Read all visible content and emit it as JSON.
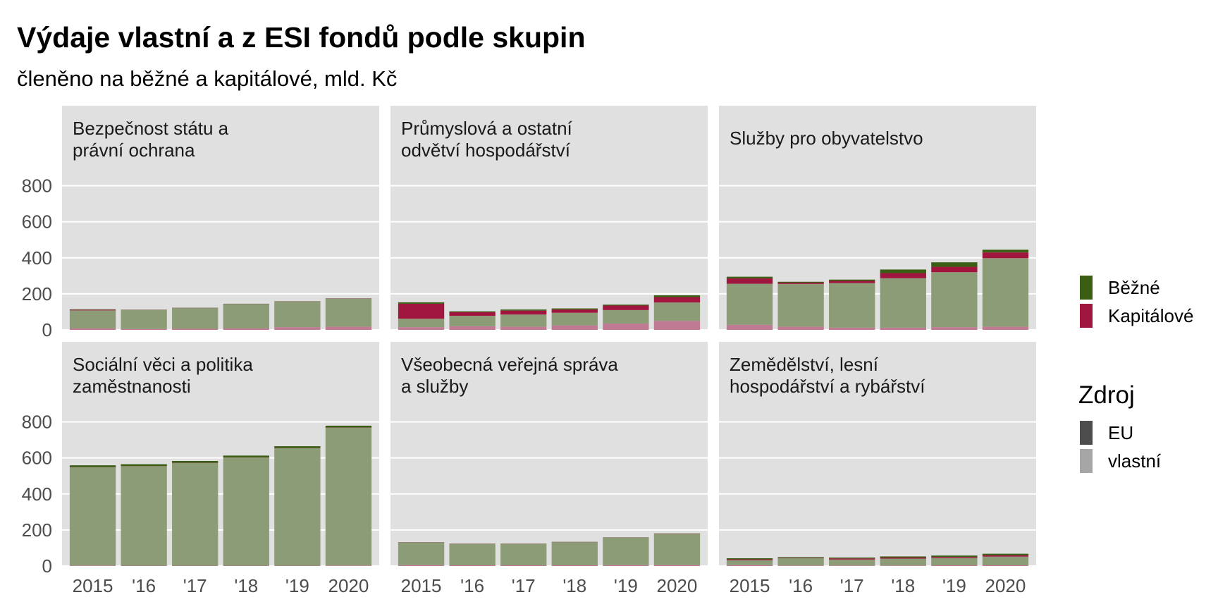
{
  "title": "Výdaje vlastní a z ESI fondů podle skupin",
  "subtitle": "členěno na běžné a kapitálové, mld. Kč",
  "colors": {
    "bezne_eu": "#3a5e14",
    "bezne_vlastni": "#8c9c77",
    "kapitalove_eu": "#a1163f",
    "kapitalove_vlastni": "#c07a93",
    "panel_bg": "#e0e0e0",
    "grid": "#ffffff",
    "key_eu": "#4d4d4d",
    "key_vlastni": "#a6a6a6"
  },
  "legend": {
    "fill_items": [
      {
        "label": "Běžné",
        "color": "#3a5e14"
      },
      {
        "label": "Kapitálové",
        "color": "#a1163f"
      }
    ],
    "alpha_title": "Zdroj",
    "alpha_items": [
      {
        "label": "EU",
        "color": "#4d4d4d"
      },
      {
        "label": "vlastní",
        "color": "#a6a6a6"
      }
    ]
  },
  "chart_data": {
    "type": "bar",
    "stacked": true,
    "categories": [
      "2015",
      "'16",
      "'17",
      "'18",
      "'19",
      "2020"
    ],
    "ylim": [
      0,
      900
    ],
    "y_ticks": [
      "0",
      "200",
      "400",
      "600",
      "800"
    ],
    "grid": true,
    "legend_position": "right",
    "stack_order_bottom_to_top": [
      "Kapitálové vlastní",
      "Běžné vlastní",
      "Kapitálové EU",
      "Běžné EU"
    ],
    "panels": [
      {
        "label": "Bezpečnost státu a právní ochrana",
        "label_lines": [
          "Bezpečnost státu a",
          "právní ochrana"
        ],
        "series": [
          {
            "name": "Kapitálové vlastní",
            "values": [
              8,
              5,
              6,
              8,
              15,
              18
            ]
          },
          {
            "name": "Běžné vlastní",
            "values": [
              100,
              105,
              115,
              135,
              142,
              155
            ]
          },
          {
            "name": "Kapitálové EU",
            "values": [
              4,
              1,
              1,
              1,
              1,
              1
            ]
          },
          {
            "name": "Běžné EU",
            "values": [
              2,
              1,
              1,
              1,
              1,
              1
            ]
          }
        ]
      },
      {
        "label": "Průmyslová a ostatní odvětví hospodářství",
        "label_lines": [
          "Průmyslová a ostatní",
          "odvětví hospodářství"
        ],
        "series": [
          {
            "name": "Kapitálové vlastní",
            "values": [
              15,
              20,
              18,
              25,
              35,
              50
            ]
          },
          {
            "name": "Běžné vlastní",
            "values": [
              47,
              58,
              67,
              70,
              75,
              102
            ]
          },
          {
            "name": "Kapitálové EU",
            "values": [
              83,
              20,
              22,
              18,
              25,
              30
            ]
          },
          {
            "name": "Běžné EU",
            "values": [
              8,
              5,
              6,
              6,
              5,
              10
            ]
          }
        ]
      },
      {
        "label": "Služby pro obyvatelstvo",
        "label_lines": [
          "Služby pro obyvatelstvo"
        ],
        "series": [
          {
            "name": "Kapitálové vlastní",
            "values": [
              28,
              18,
              12,
              12,
              15,
              18
            ]
          },
          {
            "name": "Běžné vlastní",
            "values": [
              228,
              237,
              248,
              275,
              305,
              380
            ]
          },
          {
            "name": "Kapitálové EU",
            "values": [
              30,
              7,
              12,
              28,
              30,
              32
            ]
          },
          {
            "name": "Běžné EU",
            "values": [
              9,
              5,
              7,
              20,
              25,
              15
            ]
          }
        ]
      },
      {
        "label": "Sociální věci a politika zaměstnanosti",
        "label_lines": [
          "Sociální věci a politika",
          "zaměstnanosti"
        ],
        "series": [
          {
            "name": "Kapitálové vlastní",
            "values": [
              3,
              2,
              2,
              2,
              2,
              3
            ]
          },
          {
            "name": "Běžné vlastní",
            "values": [
              545,
              552,
              570,
              600,
              652,
              765
            ]
          },
          {
            "name": "Kapitálové EU",
            "values": [
              1,
              1,
              1,
              1,
              1,
              1
            ]
          },
          {
            "name": "Běžné EU",
            "values": [
              10,
              10,
              10,
              10,
              10,
              10
            ]
          }
        ]
      },
      {
        "label": "Všeobecná veřejná správa a služby",
        "label_lines": [
          "Všeobecná veřejná správa",
          "a služby"
        ],
        "series": [
          {
            "name": "Kapitálové vlastní",
            "values": [
              5,
              4,
              4,
              4,
              5,
              5
            ]
          },
          {
            "name": "Běžné vlastní",
            "values": [
              125,
              118,
              118,
              128,
              152,
              174
            ]
          },
          {
            "name": "Kapitálové EU",
            "values": [
              1,
              1,
              1,
              1,
              1,
              1
            ]
          },
          {
            "name": "Běžné EU",
            "values": [
              1,
              1,
              1,
              1,
              1,
              1
            ]
          }
        ]
      },
      {
        "label": "Zemědělství, lesní hospodářství a rybářství",
        "label_lines": [
          "Zemědělství, lesní",
          "hospodářství a rybářství"
        ],
        "series": [
          {
            "name": "Kapitálové vlastní",
            "values": [
              5,
              3,
              3,
              3,
              4,
              4
            ]
          },
          {
            "name": "Běžné vlastní",
            "values": [
              27,
              40,
              33,
              38,
              40,
              48
            ]
          },
          {
            "name": "Kapitálové EU",
            "values": [
              5,
              2,
              6,
              6,
              6,
              8
            ]
          },
          {
            "name": "Běžné EU",
            "values": [
              6,
              4,
              5,
              6,
              8,
              8
            ]
          }
        ]
      }
    ]
  }
}
